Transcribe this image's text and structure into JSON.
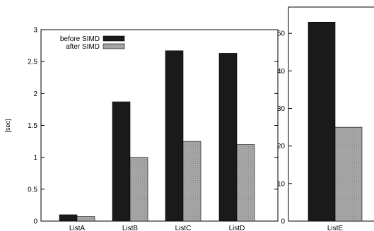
{
  "chart_data": [
    {
      "type": "bar",
      "ylabel": "[sec]",
      "categories": [
        "ListA",
        "ListB",
        "ListC",
        "ListD"
      ],
      "ylim": [
        0,
        3
      ],
      "yticks": [
        "0",
        "0.5",
        "1",
        "1.5",
        "2",
        "2.5",
        "3"
      ],
      "legend_position": "top-left",
      "grid": false,
      "series": [
        {
          "name": "before SIMD",
          "color": "#1a1a1a",
          "values": [
            0.1,
            1.87,
            2.67,
            2.63
          ]
        },
        {
          "name": "after SIMD",
          "color": "#a6a6a6",
          "values": [
            0.07,
            1.0,
            1.25,
            1.2
          ]
        }
      ]
    },
    {
      "type": "bar",
      "categories": [
        "ListE"
      ],
      "ylim": [
        0,
        57
      ],
      "yticks": [
        "0",
        "10",
        "20",
        "30",
        "40",
        "50"
      ],
      "grid": false,
      "series": [
        {
          "name": "before SIMD",
          "color": "#1a1a1a",
          "values": [
            53
          ]
        },
        {
          "name": "after SIMD",
          "color": "#a6a6a6",
          "values": [
            25
          ]
        }
      ]
    }
  ]
}
